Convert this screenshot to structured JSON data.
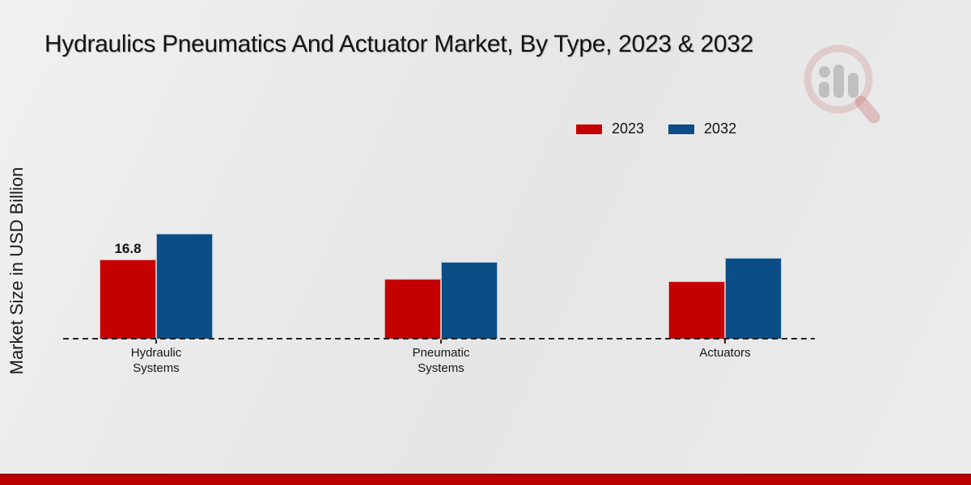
{
  "title": "Hydraulics Pneumatics And Actuator Market, By Type, 2023 & 2032",
  "y_axis_label": "Market Size in USD Billion",
  "legend": [
    {
      "label": "2023",
      "color": "#c40000"
    },
    {
      "label": "2032",
      "color": "#0b4d87"
    }
  ],
  "chart_data": {
    "type": "bar",
    "categories": [
      "Hydraulic Systems",
      "Pneumatic Systems",
      "Actuators"
    ],
    "tick_labels": [
      "Hydraulic\nSystems",
      "Pneumatic\nSystems",
      "Actuators"
    ],
    "series": [
      {
        "name": "2023",
        "color": "#c40000",
        "values": [
          16.8,
          12.6,
          12.1
        ]
      },
      {
        "name": "2032",
        "color": "#0b4d87",
        "values": [
          22.2,
          16.3,
          17.1
        ]
      }
    ],
    "value_labels": [
      {
        "series": "2023",
        "category": "Hydraulic Systems",
        "text": "16.8"
      }
    ],
    "title": "Hydraulics Pneumatics And Actuator Market, By Type, 2023 & 2032",
    "xlabel": "",
    "ylabel": "Market Size in USD Billion",
    "ylim": [
      0,
      25
    ],
    "grid": false,
    "legend_position": "top-right",
    "baseline_style": "dashed"
  },
  "watermark": {
    "name": "market-research-future-logo"
  },
  "footer": {
    "accent_color": "#bb0000"
  }
}
